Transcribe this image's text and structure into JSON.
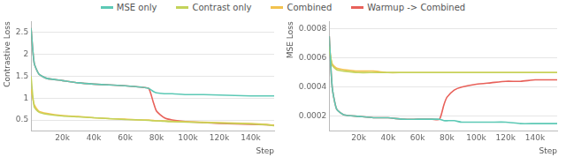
{
  "chart_data": [
    {
      "type": "line",
      "y_label": "Contrastive Loss",
      "x_label": "Step",
      "legend": "top",
      "grid": true,
      "x": [
        0,
        2000,
        5000,
        10000,
        20000,
        30000,
        40000,
        50000,
        60000,
        70000,
        75000,
        78000,
        80000,
        85000,
        90000,
        100000,
        110000,
        120000,
        130000,
        140000,
        150000,
        155000
      ],
      "xlim": [
        0,
        155000
      ],
      "xticks": [
        {
          "value": 20000,
          "label": "20k"
        },
        {
          "value": 40000,
          "label": "40k"
        },
        {
          "value": 60000,
          "label": "60k"
        },
        {
          "value": 80000,
          "label": "80k"
        },
        {
          "value": 100000,
          "label": "100k"
        },
        {
          "value": 120000,
          "label": "120k"
        },
        {
          "value": 140000,
          "label": "140k"
        }
      ],
      "ylim": [
        0.25,
        2.75
      ],
      "yticks": [
        0.5,
        1,
        1.5,
        2,
        2.5
      ],
      "series": [
        {
          "name": "MSE only",
          "color": "#5cc9b5",
          "values": [
            2.6,
            1.8,
            1.55,
            1.45,
            1.4,
            1.35,
            1.32,
            1.3,
            1.28,
            1.25,
            1.22,
            1.15,
            1.12,
            1.1,
            1.1,
            1.08,
            1.08,
            1.07,
            1.06,
            1.05,
            1.05,
            1.05
          ]
        },
        {
          "name": "Contrast only",
          "color": "#c3d35a",
          "values": [
            1.5,
            0.8,
            0.68,
            0.63,
            0.59,
            0.57,
            0.55,
            0.53,
            0.51,
            0.5,
            0.49,
            0.48,
            0.48,
            0.47,
            0.46,
            0.45,
            0.44,
            0.43,
            0.42,
            0.41,
            0.39,
            0.37
          ]
        },
        {
          "name": "Combined",
          "color": "#f2c24e",
          "values": [
            1.2,
            0.85,
            0.7,
            0.65,
            0.6,
            0.58,
            0.55,
            0.53,
            0.52,
            0.5,
            0.5,
            0.49,
            0.48,
            0.48,
            0.47,
            0.46,
            0.45,
            0.44,
            0.43,
            0.42,
            0.4,
            0.38
          ]
        },
        {
          "name": "Warmup -> Combined",
          "color": "#e8615a",
          "values": [
            2.6,
            1.8,
            1.55,
            1.45,
            1.4,
            1.35,
            1.32,
            1.3,
            1.28,
            1.25,
            1.22,
            0.9,
            0.7,
            0.55,
            0.5,
            0.46,
            0.44,
            0.42,
            0.41,
            0.4,
            0.39,
            0.38
          ]
        }
      ]
    },
    {
      "type": "line",
      "y_label": "MSE Loss",
      "x_label": "Step",
      "legend": "top",
      "grid": true,
      "x": [
        0,
        2000,
        5000,
        10000,
        20000,
        30000,
        40000,
        50000,
        60000,
        70000,
        75000,
        78000,
        80000,
        85000,
        90000,
        100000,
        110000,
        120000,
        130000,
        140000,
        150000,
        155000
      ],
      "xlim": [
        0,
        155000
      ],
      "xticks": [
        {
          "value": 20000,
          "label": "20k"
        },
        {
          "value": 40000,
          "label": "40k"
        },
        {
          "value": 60000,
          "label": "60k"
        },
        {
          "value": 80000,
          "label": "80k"
        },
        {
          "value": 100000,
          "label": "100k"
        },
        {
          "value": 120000,
          "label": "120k"
        },
        {
          "value": 140000,
          "label": "140k"
        }
      ],
      "ylim": [
        0.0001,
        0.00085
      ],
      "yticks": [
        0.0002,
        0.0004,
        0.0006,
        0.0008
      ],
      "series": [
        {
          "name": "MSE only",
          "color": "#5cc9b5",
          "values": [
            0.00075,
            0.0004,
            0.00025,
            0.00021,
            0.0002,
            0.00019,
            0.00019,
            0.00018,
            0.00018,
            0.00018,
            0.00018,
            0.00017,
            0.00017,
            0.00017,
            0.00016,
            0.00016,
            0.00016,
            0.00016,
            0.00015,
            0.00015,
            0.00015,
            0.00015
          ]
        },
        {
          "name": "Contrast only",
          "color": "#c3d35a",
          "values": [
            0.00068,
            0.00055,
            0.00052,
            0.00051,
            0.0005,
            0.0005,
            0.0005,
            0.0005,
            0.0005,
            0.0005,
            0.0005,
            0.0005,
            0.0005,
            0.0005,
            0.0005,
            0.0005,
            0.0005,
            0.0005,
            0.0005,
            0.0005,
            0.0005,
            0.0005
          ]
        },
        {
          "name": "Combined",
          "color": "#f2c24e",
          "values": [
            0.00065,
            0.00056,
            0.00053,
            0.00052,
            0.00051,
            0.00051,
            0.0005,
            0.0005,
            0.0005,
            0.0005,
            0.0005,
            0.0005,
            0.0005,
            0.0005,
            0.0005,
            0.0005,
            0.0005,
            0.0005,
            0.0005,
            0.0005,
            0.0005,
            0.0005
          ]
        },
        {
          "name": "Warmup -> Combined",
          "color": "#e8615a",
          "values": [
            0.00075,
            0.0004,
            0.00025,
            0.00021,
            0.0002,
            0.00019,
            0.00019,
            0.00018,
            0.00018,
            0.00018,
            0.00018,
            0.00028,
            0.00033,
            0.00038,
            0.0004,
            0.00042,
            0.00043,
            0.00044,
            0.00044,
            0.00045,
            0.00045,
            0.00045
          ]
        }
      ]
    }
  ]
}
